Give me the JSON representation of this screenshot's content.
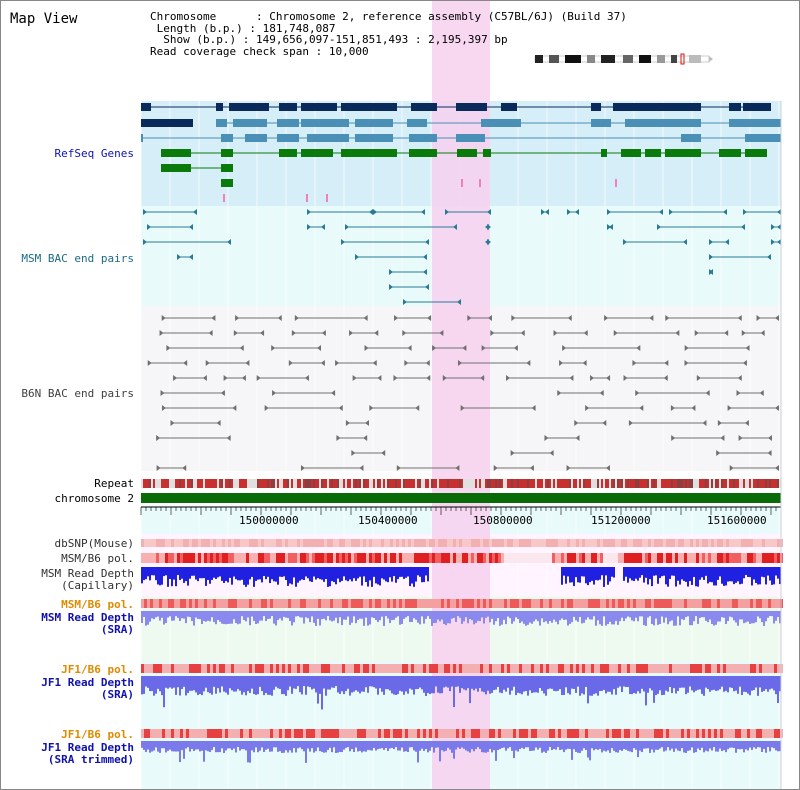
{
  "title": "Map View",
  "info": {
    "chromosome_label": "Chromosome",
    "chromosome_value": "Chromosome 2, reference assembly (C57BL/6J) (Build 37)",
    "length_label": "Length (b.p.)",
    "length_value": "181,748,087",
    "show_label": "Show (b.p.)",
    "show_value": "149,656,097-151,851,493 : 2,195,397 bp",
    "coverage_label": "Read coverage check span",
    "coverage_value": "10,000"
  },
  "tracks": {
    "refseq": "RefSeq Genes",
    "msm_bac": "MSM BAC end pairs",
    "b6n_bac": "B6N BAC end pairs",
    "repeat": "Repeat",
    "chromosome": "chromosome 2",
    "dbsnp": "dbSNP(Mouse)",
    "msm_b6_pol": "MSM/B6 pol.",
    "msm_read_depth_cap_1": "MSM Read Depth",
    "msm_read_depth_cap_2": "(Capillary)",
    "msm_b6_pol_2": "MSM/B6 pol.",
    "msm_read_depth_sra_1": "MSM Read Depth",
    "msm_read_depth_sra_2": "(SRA)",
    "jf1_b6_pol": "JF1/B6 pol.",
    "jf1_read_depth_sra_1": "JF1 Read Depth",
    "jf1_read_depth_sra_2": "(SRA)",
    "jf1_b6_pol_2": "JF1/B6 pol.",
    "jf1_read_depth_trim_1": "JF1 Read Depth",
    "jf1_read_depth_trim_2": "(SRA trimmed)"
  },
  "ruler": {
    "ticks": [
      "150000000",
      "150400000",
      "150800000",
      "151200000",
      "151600000"
    ]
  },
  "colors": {
    "refseq_bg": "#d6eef8",
    "bac_bg": "#e8fafa",
    "highlight": "#f7d0ef",
    "gene_dark": "#0b2a5c",
    "gene_mid": "#4a8fb5",
    "gene_green": "#0a7a0a",
    "msm_line": "#2a7a95",
    "b6n_line": "#707070",
    "repeat_red": "#c83030",
    "chromosome_green": "#086b08",
    "label_blue": "#1010b0",
    "label_orange": "#e08a00",
    "label_black": "#303030"
  }
}
